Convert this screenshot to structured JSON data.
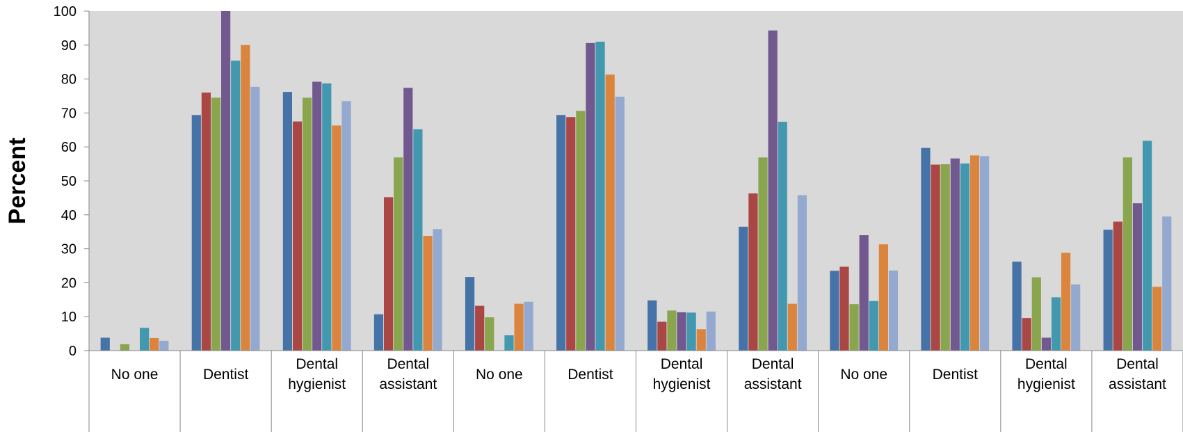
{
  "chart_data": {
    "type": "bar",
    "ylabel": "Percent",
    "xlabel": "",
    "ylim": [
      0,
      100
    ],
    "yticks": [
      "0",
      "10",
      "20",
      "30",
      "40",
      "50",
      "60",
      "70",
      "80",
      "90",
      "100"
    ],
    "categories": [
      [
        "No one"
      ],
      [
        "Dentist"
      ],
      [
        "Dental",
        "hygienist"
      ],
      [
        "Dental",
        "assistant"
      ],
      [
        "No one"
      ],
      [
        "Dentist"
      ],
      [
        "Dental",
        "hygienist"
      ],
      [
        "Dental",
        "assistant"
      ],
      [
        "No one"
      ],
      [
        "Dentist"
      ],
      [
        "Dental",
        "hygienist"
      ],
      [
        "Dental",
        "assistant"
      ]
    ],
    "series_colors": [
      "#4572A7",
      "#AA4643",
      "#89A54E",
      "#71588F",
      "#4198AF",
      "#DB843D",
      "#93A9CF"
    ],
    "series": [
      {
        "values": [
          3.8,
          69.4,
          76.2,
          10.7,
          21.7,
          69.4,
          14.8,
          36.5,
          23.5,
          59.7,
          26.2,
          35.6
        ]
      },
      {
        "values": [
          0,
          76,
          67.5,
          45.2,
          13.2,
          68.8,
          8.5,
          46.3,
          24.7,
          54.8,
          9.6,
          38
        ]
      },
      {
        "values": [
          1.9,
          74.5,
          74.5,
          56.9,
          9.8,
          70.6,
          11.8,
          56.9,
          13.7,
          54.9,
          21.6,
          56.9
        ]
      },
      {
        "values": [
          0,
          100,
          79.2,
          77.4,
          0,
          90.6,
          11.3,
          94.3,
          34,
          56.6,
          3.8,
          43.4
        ]
      },
      {
        "values": [
          6.7,
          85.4,
          78.7,
          65.2,
          4.5,
          91,
          11.2,
          67.4,
          14.6,
          55.1,
          15.7,
          61.8
        ]
      },
      {
        "values": [
          3.7,
          90,
          66.3,
          33.8,
          13.8,
          81.3,
          6.3,
          13.8,
          31.3,
          57.5,
          28.8,
          18.8
        ]
      },
      {
        "values": [
          2.9,
          77.7,
          73.5,
          35.8,
          14.4,
          74.8,
          11.5,
          45.8,
          23.6,
          57.3,
          19.5,
          39.5
        ]
      }
    ]
  }
}
